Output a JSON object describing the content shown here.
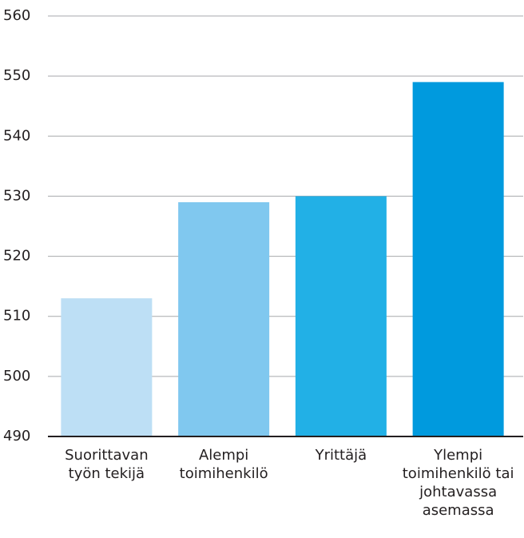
{
  "chart_data": {
    "type": "bar",
    "categories": [
      "Suorittavan työn tekijä",
      "Alempi toimihenkilö",
      "Yrittäjä",
      "Ylempi toimihenkilö tai johtavassa asemassa"
    ],
    "values": [
      513,
      529,
      530,
      549
    ],
    "colors": [
      "#bddff5",
      "#80c8ef",
      "#22b0e6",
      "#009ade"
    ],
    "ylim": [
      490,
      560
    ],
    "yticks": [
      490,
      500,
      510,
      520,
      530,
      540,
      550,
      560
    ],
    "grid": true
  }
}
